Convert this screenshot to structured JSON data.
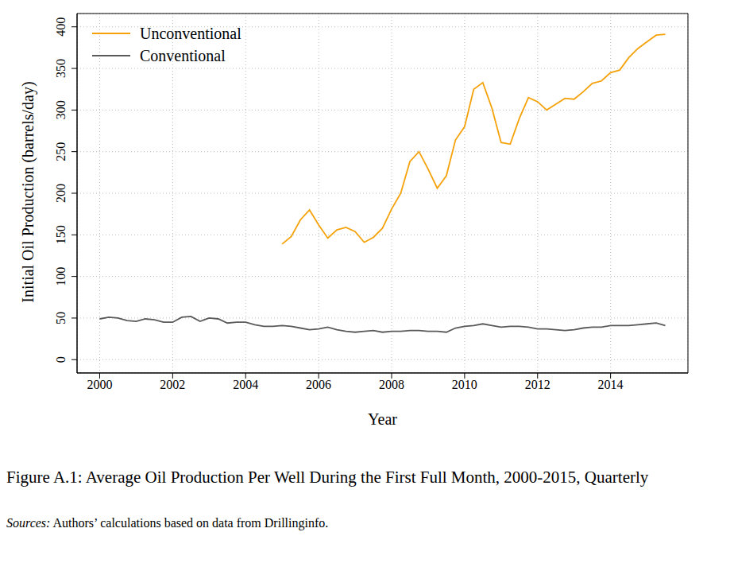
{
  "chart_data": {
    "type": "line",
    "title": "Figure A.1: Average Oil Production Per Well During the First Full Month, 2000-2015, Quarterly",
    "source": {
      "label": "Sources:",
      "text": "Authors’ calculations based on data from Drillinginfo."
    },
    "x_label": "Year",
    "y_label": "Initial Oil Production (barrels/day)",
    "x": [
      2000,
      2000.25,
      2000.5,
      2000.75,
      2001,
      2001.25,
      2001.5,
      2001.75,
      2002,
      2002.25,
      2002.5,
      2002.75,
      2003,
      2003.25,
      2003.5,
      2003.75,
      2004,
      2004.25,
      2004.5,
      2004.75,
      2005,
      2005.25,
      2005.5,
      2005.75,
      2006,
      2006.25,
      2006.5,
      2006.75,
      2007,
      2007.25,
      2007.5,
      2007.75,
      2008,
      2008.25,
      2008.5,
      2008.75,
      2009,
      2009.25,
      2009.5,
      2009.75,
      2010,
      2010.25,
      2010.5,
      2010.75,
      2011,
      2011.25,
      2011.5,
      2011.75,
      2012,
      2012.25,
      2012.5,
      2012.75,
      2013,
      2013.25,
      2013.5,
      2013.75,
      2014,
      2014.25,
      2014.5,
      2014.75,
      2015,
      2015.25,
      2015.5
    ],
    "series": [
      {
        "name": "Unconventional",
        "color": "#f5a20a",
        "values": [
          null,
          null,
          null,
          null,
          null,
          null,
          null,
          null,
          null,
          null,
          null,
          null,
          null,
          null,
          null,
          null,
          null,
          null,
          null,
          null,
          139,
          148,
          168,
          180,
          162,
          146,
          156,
          159,
          154,
          141,
          147,
          158,
          181,
          200,
          238,
          250,
          229,
          206,
          221,
          264,
          280,
          325,
          333,
          302,
          261,
          259,
          290,
          315,
          310,
          300,
          307,
          314,
          313,
          322,
          332,
          335,
          345,
          348,
          363,
          374,
          382,
          390,
          391
        ]
      },
      {
        "name": "Conventional",
        "color": "#5a5a5a",
        "values": [
          49,
          51,
          50,
          47,
          46,
          49,
          48,
          45,
          45,
          51,
          52,
          46,
          50,
          49,
          44,
          45,
          45,
          42,
          40,
          40,
          41,
          40,
          38,
          36,
          37,
          39,
          36,
          34,
          33,
          34,
          35,
          33,
          34,
          34,
          35,
          35,
          34,
          34,
          33,
          38,
          40,
          41,
          43,
          41,
          39,
          40,
          40,
          39,
          37,
          37,
          36,
          35,
          36,
          38,
          39,
          39,
          41,
          41,
          41,
          42,
          43,
          44,
          41
        ]
      }
    ],
    "xlim": [
      1999.38,
      2016.12
    ],
    "xticks": [
      2000,
      2002,
      2004,
      2006,
      2008,
      2010,
      2012,
      2014
    ],
    "ylim": [
      -16,
      416
    ],
    "yticks": [
      0,
      50,
      100,
      150,
      200,
      250,
      300,
      350,
      400
    ],
    "grid": true,
    "legend": "top-left"
  }
}
